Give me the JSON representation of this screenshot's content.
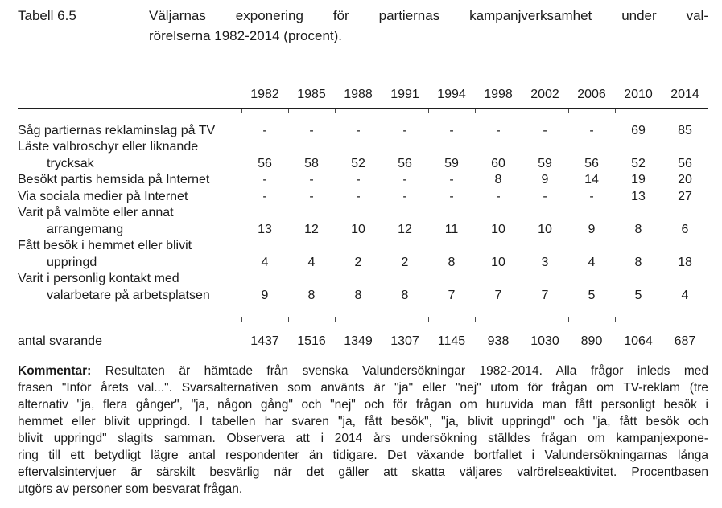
{
  "title": {
    "label": "Tabell 6.5",
    "lines": [
      "Väljarnas exponering för partiernas kampanjverksamhet under val-",
      "rörelserna 1982-2014 (procent)."
    ]
  },
  "table": {
    "years": [
      "1982",
      "1985",
      "1988",
      "1991",
      "1994",
      "1998",
      "2002",
      "2006",
      "2010",
      "2014"
    ],
    "rows": [
      {
        "label_lines": [
          "Såg partiernas reklaminslag på TV"
        ],
        "values": [
          "-",
          "-",
          "-",
          "-",
          "-",
          "-",
          "-",
          "-",
          "69",
          "85"
        ]
      },
      {
        "label_lines": [
          "Läste valbroschyr eller liknande",
          "trycksak"
        ],
        "values": [
          "56",
          "58",
          "52",
          "56",
          "59",
          "60",
          "59",
          "56",
          "52",
          "56"
        ]
      },
      {
        "label_lines": [
          "Besökt partis hemsida på Internet"
        ],
        "values": [
          "-",
          "-",
          "-",
          "-",
          "-",
          "8",
          "9",
          "14",
          "19",
          "20"
        ]
      },
      {
        "label_lines": [
          "Via sociala medier på Internet"
        ],
        "values": [
          "-",
          "-",
          "-",
          "-",
          "-",
          "-",
          "-",
          "-",
          "13",
          "27"
        ]
      },
      {
        "label_lines": [
          "Varit på valmöte eller annat",
          "arrangemang"
        ],
        "values": [
          "13",
          "12",
          "10",
          "12",
          "11",
          "10",
          "10",
          "9",
          "8",
          "6"
        ]
      },
      {
        "label_lines": [
          "Fått besök i hemmet eller blivit",
          "uppringd"
        ],
        "values": [
          "4",
          "4",
          "2",
          "2",
          "8",
          "10",
          "3",
          "4",
          "8",
          "18"
        ]
      },
      {
        "label_lines": [
          "Varit i personlig kontakt med",
          "valarbetare på arbetsplatsen"
        ],
        "values": [
          "9",
          "8",
          "8",
          "8",
          "7",
          "7",
          "7",
          "5",
          "5",
          "4"
        ]
      }
    ],
    "footer": {
      "label": "antal svarande",
      "values": [
        "1437",
        "1516",
        "1349",
        "1307",
        "1145",
        "938",
        "1030",
        "890",
        "1064",
        "687"
      ]
    }
  },
  "comment": {
    "label": "Kommentar:",
    "lines": [
      " Resultaten är hämtade från svenska Valundersökningar 1982-2014. Alla frågor inleds med",
      "frasen \"Inför årets val...\". Svarsalternativen som använts är \"ja\" eller \"nej\" utom för frågan om TV-reklam (tre",
      "alternativ \"ja, flera gånger\", \"ja, någon gång\" och \"nej\" och för frågan om huruvida man fått personligt besök i",
      "hemmet eller blivit uppringd. I tabellen har svaren \"ja, fått besök\", \"ja, blivit uppringd\" och \"ja, fått besök och",
      "blivit uppringd\" slagits samman. Observera att i 2014 års undersökning ställdes frågan om kampanjexpone-",
      "ring till ett betydligt lägre antal respondenter än tidigare. Det växande bortfallet i Valundersökningarnas långa",
      "eftervalsintervjuer är särskilt besvärlig när det gäller att skatta väljares valrörelseaktivitet. Procentbasen",
      "utgörs av personer som besvarat frågan."
    ]
  }
}
